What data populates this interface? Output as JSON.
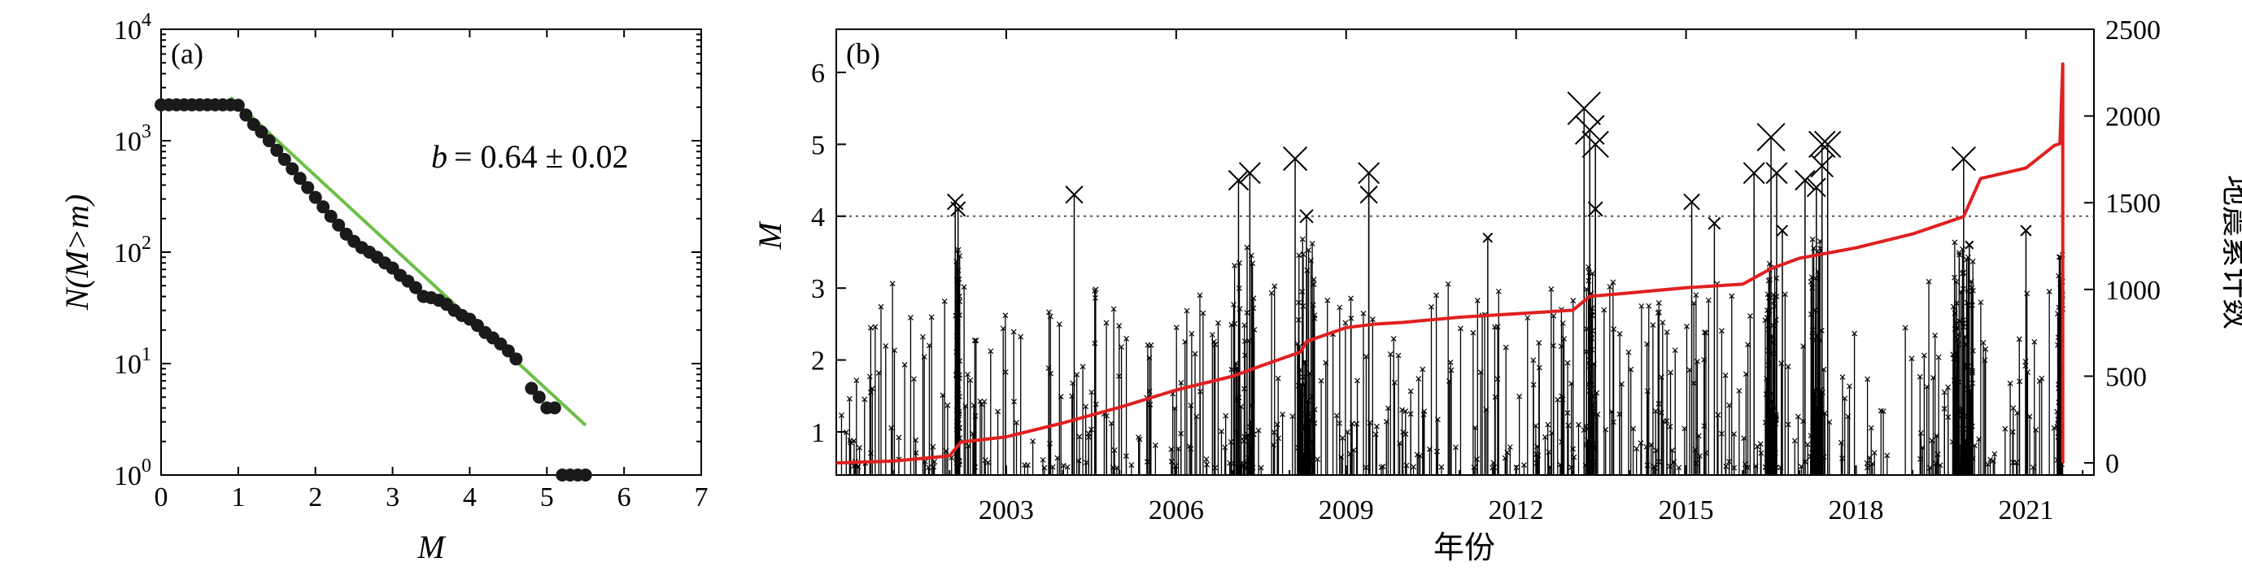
{
  "chart_data": [
    {
      "type": "scatter",
      "panel_label": "(a)",
      "xlabel": "M",
      "ylabel": "N(M>m)",
      "xlim": [
        0,
        7
      ],
      "ylim_log10": [
        0,
        4
      ],
      "y_scale": "log",
      "x_ticks": [
        "0",
        "1",
        "2",
        "3",
        "4",
        "5",
        "6",
        "7"
      ],
      "y_ticks": [
        {
          "base": "10",
          "exp": "0"
        },
        {
          "base": "10",
          "exp": "1"
        },
        {
          "base": "10",
          "exp": "2"
        },
        {
          "base": "10",
          "exp": "3"
        },
        {
          "base": "10",
          "exp": "4"
        }
      ],
      "annotation": {
        "var": "b",
        "text": "= 0.64 ± 0.02"
      },
      "series": [
        {
          "marker": "circle",
          "color": "#1a1a1a",
          "points": [
            [
              0.0,
              2100
            ],
            [
              0.1,
              2100
            ],
            [
              0.2,
              2100
            ],
            [
              0.3,
              2100
            ],
            [
              0.4,
              2100
            ],
            [
              0.5,
              2100
            ],
            [
              0.6,
              2100
            ],
            [
              0.7,
              2100
            ],
            [
              0.8,
              2100
            ],
            [
              0.9,
              2100
            ],
            [
              1.0,
              2080
            ],
            [
              1.1,
              1700
            ],
            [
              1.2,
              1400
            ],
            [
              1.3,
              1200
            ],
            [
              1.4,
              1000
            ],
            [
              1.5,
              820
            ],
            [
              1.6,
              680
            ],
            [
              1.7,
              560
            ],
            [
              1.8,
              460
            ],
            [
              1.9,
              380
            ],
            [
              2.0,
              310
            ],
            [
              2.1,
              255
            ],
            [
              2.2,
              210
            ],
            [
              2.3,
              175
            ],
            [
              2.4,
              145
            ],
            [
              2.5,
              125
            ],
            [
              2.6,
              110
            ],
            [
              2.7,
              100
            ],
            [
              2.8,
              90
            ],
            [
              2.9,
              80
            ],
            [
              3.0,
              72
            ],
            [
              3.1,
              62
            ],
            [
              3.2,
              55
            ],
            [
              3.3,
              48
            ],
            [
              3.4,
              40
            ],
            [
              3.5,
              39
            ],
            [
              3.6,
              37
            ],
            [
              3.7,
              34
            ],
            [
              3.8,
              30
            ],
            [
              3.9,
              27
            ],
            [
              4.0,
              25
            ],
            [
              4.1,
              22
            ],
            [
              4.2,
              19
            ],
            [
              4.3,
              17
            ],
            [
              4.4,
              15
            ],
            [
              4.5,
              13
            ],
            [
              4.6,
              11
            ],
            [
              4.8,
              6
            ],
            [
              4.9,
              5
            ],
            [
              5.0,
              4
            ],
            [
              5.1,
              4
            ],
            [
              5.2,
              1
            ],
            [
              5.3,
              1
            ],
            [
              5.4,
              1
            ],
            [
              5.5,
              1
            ]
          ]
        },
        {
          "type": "line",
          "color": "#6cbf45",
          "points": [
            [
              0.9,
              2450
            ],
            [
              5.5,
              2.8
            ]
          ]
        }
      ]
    },
    {
      "type": "line",
      "panel_label": "(b)",
      "xlabel": "年份",
      "ylabel": "M",
      "ylabel_right": "地震累计数",
      "xlim": [
        2000.0,
        2022.2
      ],
      "ylim": [
        0.4,
        6.6
      ],
      "ylim_right": [
        -70,
        2500
      ],
      "x_ticks": [
        "2003",
        "2006",
        "2009",
        "2012",
        "2015",
        "2018",
        "2021"
      ],
      "y_ticks": [
        "1",
        "2",
        "3",
        "4",
        "5",
        "6"
      ],
      "y_ticks_right": [
        "0",
        "500",
        "1000",
        "1500",
        "2000",
        "2500"
      ],
      "reference_line": {
        "y": 4.0,
        "style": "dotted"
      },
      "events_large": [
        {
          "year": 2002.1,
          "m": 4.2
        },
        {
          "year": 2002.15,
          "m": 4.1
        },
        {
          "year": 2004.2,
          "m": 4.3
        },
        {
          "year": 2007.1,
          "m": 4.5
        },
        {
          "year": 2007.3,
          "m": 4.6
        },
        {
          "year": 2008.1,
          "m": 4.8
        },
        {
          "year": 2008.3,
          "m": 4.0
        },
        {
          "year": 2009.4,
          "m": 4.6
        },
        {
          "year": 2009.4,
          "m": 4.3
        },
        {
          "year": 2011.5,
          "m": 3.7
        },
        {
          "year": 2013.2,
          "m": 5.5
        },
        {
          "year": 2013.3,
          "m": 5.2
        },
        {
          "year": 2013.4,
          "m": 5.0
        },
        {
          "year": 2013.4,
          "m": 4.1
        },
        {
          "year": 2015.1,
          "m": 4.2
        },
        {
          "year": 2015.5,
          "m": 3.9
        },
        {
          "year": 2016.2,
          "m": 4.6
        },
        {
          "year": 2016.5,
          "m": 5.1
        },
        {
          "year": 2016.6,
          "m": 4.6
        },
        {
          "year": 2016.7,
          "m": 3.8
        },
        {
          "year": 2017.1,
          "m": 4.5
        },
        {
          "year": 2017.3,
          "m": 4.4
        },
        {
          "year": 2017.4,
          "m": 5.0
        },
        {
          "year": 2017.5,
          "m": 5.0
        },
        {
          "year": 2017.4,
          "m": 4.7
        },
        {
          "year": 2019.9,
          "m": 4.8
        },
        {
          "year": 2020.0,
          "m": 3.6
        },
        {
          "year": 2021.0,
          "m": 3.8
        }
      ],
      "cumulative_count": {
        "color": "#e02020",
        "points": [
          [
            2000.0,
            0
          ],
          [
            2001.0,
            10
          ],
          [
            2002.0,
            40
          ],
          [
            2002.2,
            120
          ],
          [
            2003.0,
            150
          ],
          [
            2004.0,
            230
          ],
          [
            2005.0,
            320
          ],
          [
            2006.0,
            420
          ],
          [
            2007.0,
            500
          ],
          [
            2007.5,
            560
          ],
          [
            2008.2,
            640
          ],
          [
            2008.3,
            700
          ],
          [
            2009.0,
            780
          ],
          [
            2009.5,
            800
          ],
          [
            2010.0,
            810
          ],
          [
            2011.0,
            840
          ],
          [
            2012.0,
            860
          ],
          [
            2013.0,
            880
          ],
          [
            2013.3,
            960
          ],
          [
            2014.0,
            980
          ],
          [
            2015.0,
            1010
          ],
          [
            2016.0,
            1030
          ],
          [
            2016.5,
            1120
          ],
          [
            2017.0,
            1180
          ],
          [
            2018.0,
            1240
          ],
          [
            2019.0,
            1320
          ],
          [
            2019.9,
            1420
          ],
          [
            2020.2,
            1640
          ],
          [
            2021.0,
            1700
          ],
          [
            2021.5,
            1830
          ],
          [
            2021.6,
            1840
          ],
          [
            2021.65,
            2300
          ],
          [
            2021.65,
            0
          ]
        ]
      }
    }
  ]
}
